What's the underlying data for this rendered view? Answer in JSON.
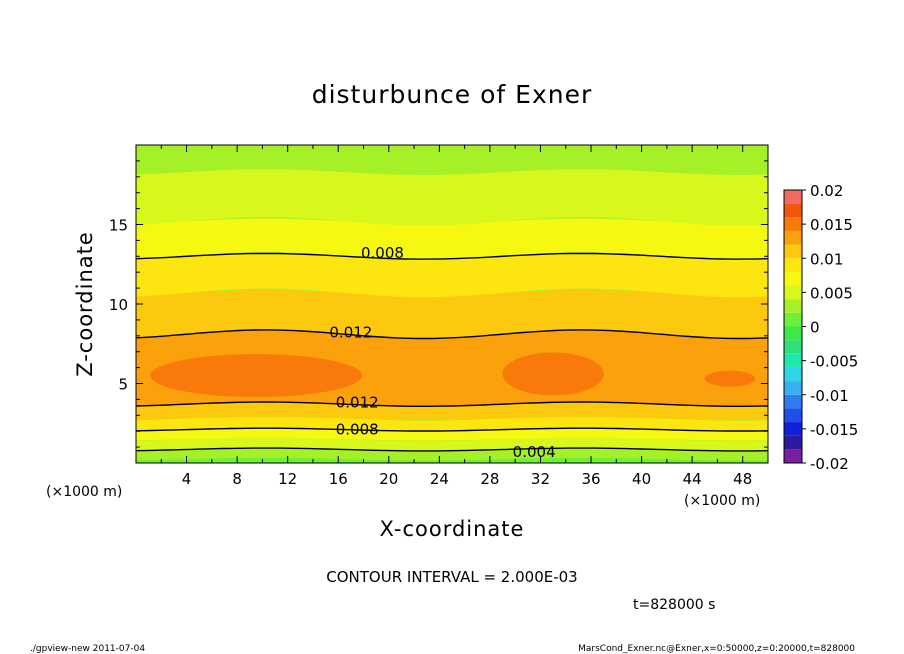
{
  "chart_data": {
    "type": "contour",
    "title": "disturbunce of Exner",
    "xlabel": "X-coordinate",
    "ylabel": "Z-coordinate",
    "x_unit": "(×1000 m)",
    "x_unit_right": "(×1000 m)",
    "xlim": [
      0,
      50
    ],
    "ylim": [
      0,
      20
    ],
    "x_ticks": [
      4,
      8,
      12,
      16,
      20,
      24,
      28,
      32,
      36,
      40,
      44,
      48
    ],
    "y_ticks": [
      5,
      10,
      15
    ],
    "colorbar": {
      "ticks": [
        "0.02",
        "0.015",
        "0.01",
        "0.005",
        "0",
        "-0.005",
        "-0.01",
        "-0.015",
        "-0.02"
      ],
      "range": [
        -0.02,
        0.02
      ],
      "levels": [
        -0.02,
        -0.018,
        -0.016,
        -0.014,
        -0.012,
        -0.01,
        -0.008,
        -0.006,
        -0.004,
        -0.002,
        0,
        0.002,
        0.004,
        0.006,
        0.008,
        0.01,
        0.012,
        0.014,
        0.016,
        0.018,
        0.02
      ],
      "colors": [
        "#7a1fa2",
        "#2b1a9e",
        "#1220d8",
        "#1f4fe8",
        "#2f7cf0",
        "#3ab0f2",
        "#2fd7e6",
        "#22e6b0",
        "#2ee07a",
        "#3ee84a",
        "#6ef03a",
        "#a6f028",
        "#d8f81c",
        "#f6f812",
        "#fde510",
        "#fdc90e",
        "#fba10c",
        "#f97a0a",
        "#f1560c",
        "#f26a62",
        "#f9a2a2"
      ]
    },
    "contour_labels": [
      {
        "text": "0.008",
        "x": 19.5,
        "z": 13.2
      },
      {
        "text": "0.012",
        "x": 17.0,
        "z": 8.2
      },
      {
        "text": "0.012",
        "x": 17.5,
        "z": 3.8
      },
      {
        "text": "0.008",
        "x": 17.5,
        "z": 2.1
      },
      {
        "text": "0.004",
        "x": 31.5,
        "z": 0.7
      }
    ],
    "contour_interval": "CONTOUR INTERVAL = 2.000E-03",
    "time_label": "t=828000 s"
  },
  "footer": {
    "left": "./gpview-new  2011-07-04",
    "right": "MarsCond_Exner.nc@Exner,x=0:50000,z=0:20000,t=828000"
  }
}
